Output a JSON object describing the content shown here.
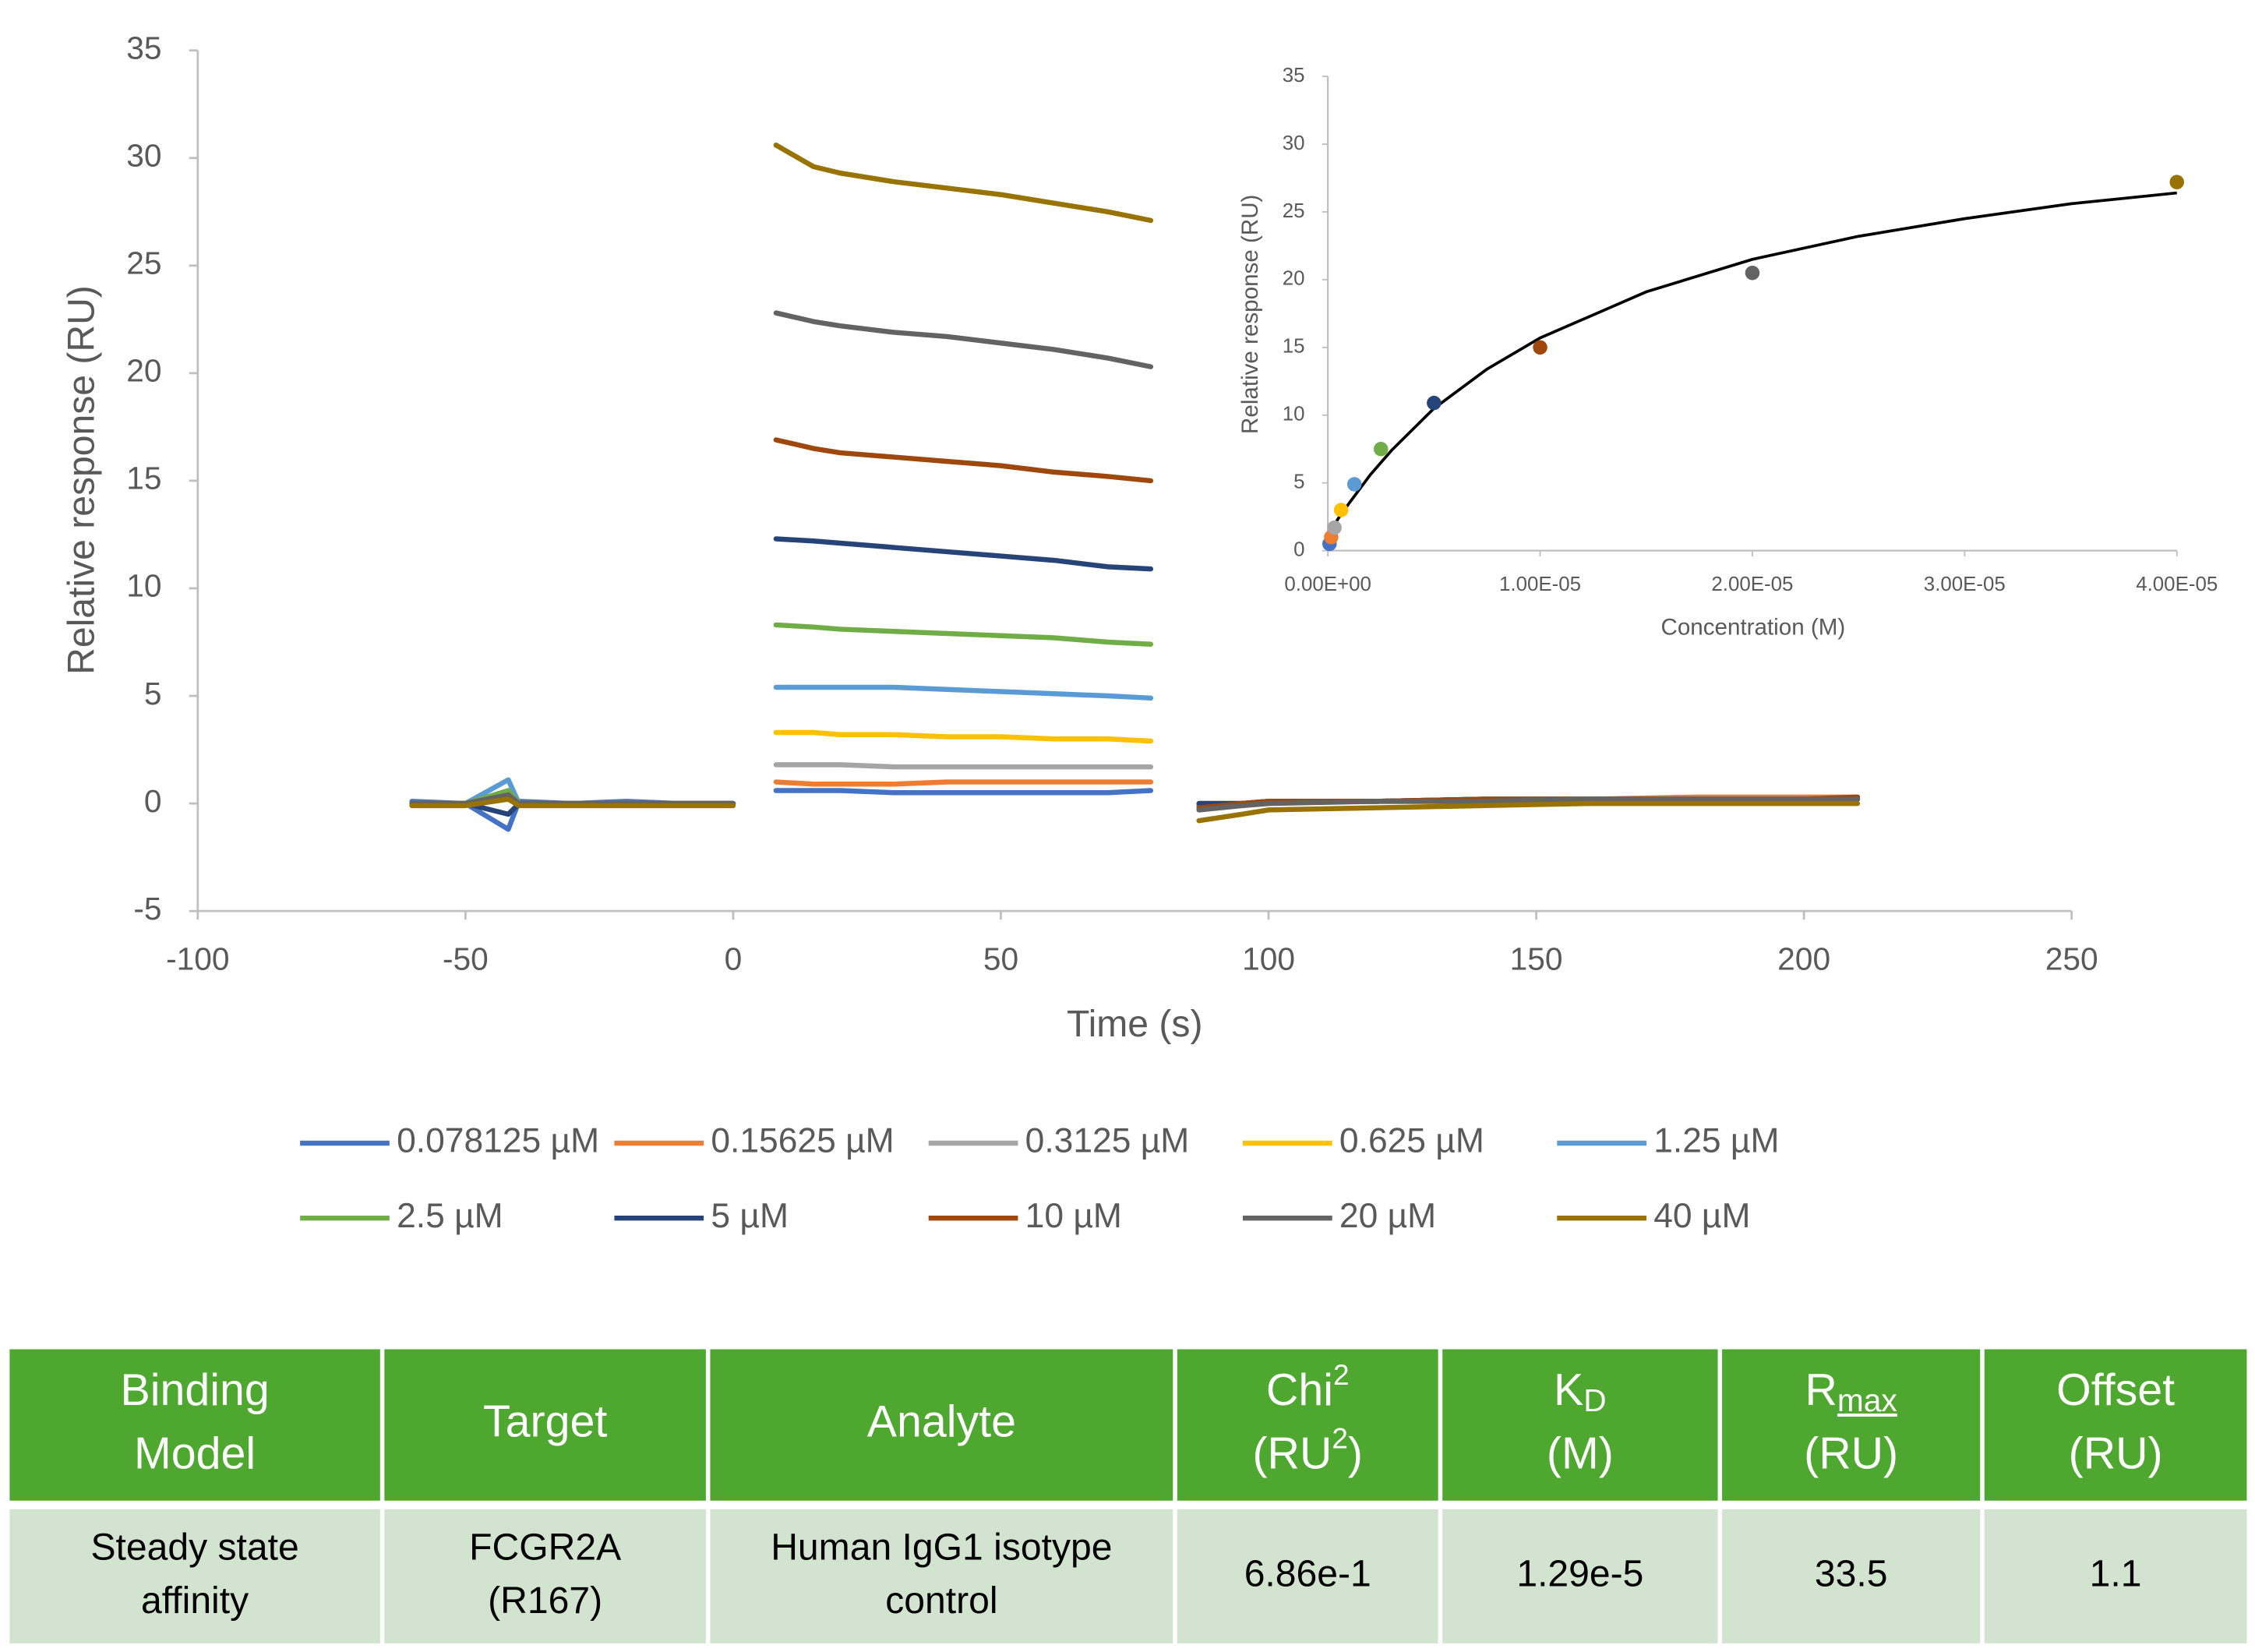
{
  "chart_data": [
    {
      "type": "line",
      "y_label": "Relative response (RU)",
      "x_label": "Time (s)",
      "xlim": [
        -100,
        250
      ],
      "xticks": [
        -100,
        -50,
        0,
        50,
        100,
        150,
        200,
        250
      ],
      "ylim": [
        -5,
        35
      ],
      "yticks": [
        -5,
        0,
        5,
        10,
        15,
        20,
        25,
        30,
        35
      ],
      "grid": false,
      "x": [
        -60,
        -50,
        -42,
        -40,
        -30,
        -20,
        -10,
        0,
        4,
        8,
        15,
        20,
        30,
        40,
        50,
        60,
        70,
        78,
        83,
        87,
        95,
        100,
        120,
        140,
        160,
        180,
        200,
        210
      ],
      "series": [
        {
          "name": "0.078125 µM",
          "color": "#4472c4",
          "values": [
            0.1,
            0,
            -1.2,
            0.1,
            0,
            0.1,
            0,
            0,
            null,
            0.6,
            0.6,
            0.6,
            0.5,
            0.5,
            0.5,
            0.5,
            0.5,
            0.6,
            null,
            0,
            0,
            0.1,
            0.1,
            0.2,
            0.2,
            0.2,
            0.2,
            0.2
          ]
        },
        {
          "name": "0.15625 µM",
          "color": "#ed7d31",
          "values": [
            0,
            0,
            0.5,
            0,
            0,
            0,
            0,
            0,
            null,
            1.0,
            0.9,
            0.9,
            0.9,
            1.0,
            1.0,
            1.0,
            1.0,
            1.0,
            null,
            0,
            0,
            0.1,
            0.1,
            0.2,
            0.2,
            0.3,
            0.3,
            0.3
          ]
        },
        {
          "name": "0.3125 µM",
          "color": "#a5a5a5",
          "values": [
            0,
            0,
            0.3,
            0,
            0,
            0,
            0,
            0,
            null,
            1.8,
            1.8,
            1.8,
            1.7,
            1.7,
            1.7,
            1.7,
            1.7,
            1.7,
            null,
            0,
            0,
            0.1,
            0.1,
            0.1,
            0.2,
            0.2,
            0.2,
            0.2
          ]
        },
        {
          "name": "0.625 µM",
          "color": "#ffc000",
          "values": [
            0,
            0,
            0.4,
            0,
            0,
            0,
            0,
            0,
            null,
            3.3,
            3.3,
            3.2,
            3.2,
            3.1,
            3.1,
            3.0,
            3.0,
            2.9,
            null,
            0,
            0,
            0.1,
            0.1,
            0.1,
            0.2,
            0.2,
            0.2,
            0.2
          ]
        },
        {
          "name": "1.25 µM",
          "color": "#5b9bd5",
          "values": [
            0,
            0,
            1.1,
            0,
            0,
            0,
            0,
            0,
            null,
            5.4,
            5.4,
            5.4,
            5.4,
            5.3,
            5.2,
            5.1,
            5.0,
            4.9,
            null,
            -0.1,
            0,
            0.1,
            0.1,
            0.2,
            0.2,
            0.2,
            0.2,
            0.2
          ]
        },
        {
          "name": "2.5 µM",
          "color": "#70ad47",
          "values": [
            0,
            0,
            0.6,
            0,
            0,
            0,
            0,
            0,
            null,
            8.3,
            8.2,
            8.1,
            8.0,
            7.9,
            7.8,
            7.7,
            7.5,
            7.4,
            null,
            -0.1,
            0,
            0.1,
            0.1,
            0.2,
            0.2,
            0.2,
            0.2,
            0.2
          ]
        },
        {
          "name": "5 µM",
          "color": "#264478",
          "values": [
            0,
            0,
            -0.5,
            0,
            0,
            0,
            0,
            0,
            null,
            12.3,
            12.2,
            12.1,
            11.9,
            11.7,
            11.5,
            11.3,
            11.0,
            10.9,
            null,
            0,
            0,
            0.1,
            0.1,
            0.2,
            0.2,
            0.2,
            0.2,
            0.2
          ]
        },
        {
          "name": "10 µM",
          "color": "#9e480e",
          "values": [
            0,
            0,
            0.3,
            0,
            0,
            0,
            0,
            0,
            null,
            16.9,
            16.5,
            16.3,
            16.1,
            15.9,
            15.7,
            15.4,
            15.2,
            15.0,
            null,
            -0.2,
            0,
            0.1,
            0.1,
            0.2,
            0.2,
            0.2,
            0.2,
            0.3
          ]
        },
        {
          "name": "20 µM",
          "color": "#636363",
          "values": [
            0,
            0,
            0.4,
            0,
            0,
            0,
            0,
            0,
            null,
            22.8,
            22.4,
            22.2,
            21.9,
            21.7,
            21.4,
            21.1,
            20.7,
            20.3,
            null,
            -0.3,
            -0.1,
            0,
            0.1,
            0.1,
            0.2,
            0.2,
            0.2,
            0.2
          ]
        },
        {
          "name": "40 µM",
          "color": "#997300",
          "values": [
            -0.1,
            -0.1,
            0.2,
            -0.1,
            -0.1,
            -0.1,
            -0.1,
            -0.1,
            null,
            30.6,
            29.6,
            29.3,
            28.9,
            28.6,
            28.3,
            27.9,
            27.5,
            27.1,
            null,
            -0.8,
            -0.5,
            -0.3,
            -0.2,
            -0.1,
            0,
            0,
            0,
            0
          ]
        }
      ]
    },
    {
      "type": "scatter",
      "x_label": "Concentration (M)",
      "y_label": "Relative response (RU)",
      "xlim": [
        0,
        4e-05
      ],
      "xticks": [
        {
          "value": 0,
          "label": "0.00E+00"
        },
        {
          "value": 1e-05,
          "label": "1.00E-05"
        },
        {
          "value": 2e-05,
          "label": "2.00E-05"
        },
        {
          "value": 3e-05,
          "label": "3.00E-05"
        },
        {
          "value": 4e-05,
          "label": "4.00E-05"
        }
      ],
      "ylim": [
        0,
        35
      ],
      "yticks": [
        0,
        5,
        10,
        15,
        20,
        25,
        30,
        35
      ],
      "x": [
        7.8125e-08,
        1.5625e-07,
        3.125e-07,
        6.25e-07,
        1.25e-06,
        2.5e-06,
        5e-06,
        1e-05,
        2e-05,
        4e-05
      ],
      "values": [
        0.5,
        1.0,
        1.7,
        3.0,
        4.9,
        7.5,
        10.9,
        15.0,
        20.5,
        27.2
      ],
      "colors": [
        "#4472c4",
        "#ed7d31",
        "#a5a5a5",
        "#ffc000",
        "#5b9bd5",
        "#70ad47",
        "#264478",
        "#9e480e",
        "#636363",
        "#997300"
      ],
      "fit": {
        "color": "#000000",
        "x": [
          0,
          5e-07,
          1e-06,
          2e-06,
          3e-06,
          5e-06,
          7.5e-06,
          1e-05,
          1.5e-05,
          2e-05,
          2.5e-05,
          3e-05,
          3.5e-05,
          4e-05
        ],
        "values": [
          1.1,
          2.4,
          3.5,
          5.6,
          7.4,
          10.5,
          13.4,
          15.7,
          19.1,
          21.5,
          23.2,
          24.5,
          25.6,
          26.4
        ]
      }
    }
  ],
  "table": {
    "header": [
      [
        [
          "Binding"
        ],
        [
          "Model"
        ]
      ],
      [
        [
          "Target"
        ]
      ],
      [
        [
          "Analyte"
        ]
      ],
      [
        [
          "Chi",
          {
            "sup": "2"
          }
        ],
        [
          "(RU",
          {
            "sup": "2"
          },
          ")"
        ]
      ],
      [
        [
          "K",
          {
            "sub": "D"
          }
        ],
        [
          "(M)"
        ]
      ],
      [
        [
          "R",
          {
            "sub": "max",
            "underline": true
          }
        ],
        [
          "(RU)"
        ]
      ],
      [
        [
          "Offset"
        ],
        [
          "(RU)"
        ]
      ]
    ],
    "rows": [
      [
        [
          "Steady state",
          "affinity"
        ],
        [
          "FCGR2A",
          "(R167)"
        ],
        [
          "Human IgG1 isotype",
          "control"
        ],
        [
          "6.86e-1"
        ],
        [
          "1.29e-5"
        ],
        [
          "33.5"
        ],
        [
          "1.1"
        ]
      ]
    ]
  }
}
